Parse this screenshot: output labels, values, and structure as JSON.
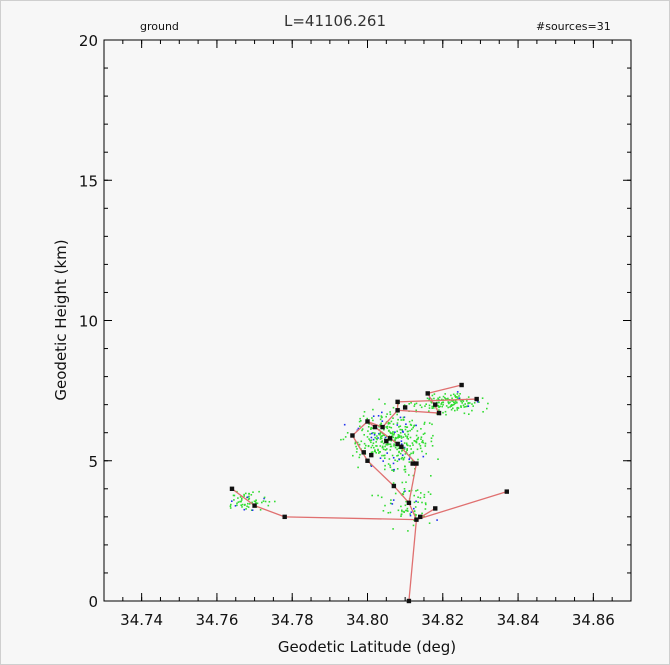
{
  "header": {
    "left": "ground",
    "center": "L=41106.261",
    "right": "#sources=31"
  },
  "chart_data": {
    "type": "scatter",
    "xlabel": "Geodetic Latitude (deg)",
    "ylabel": "Geodetic Height (km)",
    "xlim": [
      34.73,
      34.87
    ],
    "ylim": [
      0,
      20
    ],
    "x_ticks": [
      "34.74",
      "34.76",
      "34.78",
      "34.80",
      "34.82",
      "34.84",
      "34.86"
    ],
    "x_tick_values": [
      34.74,
      34.76,
      34.78,
      34.8,
      34.82,
      34.84,
      34.86
    ],
    "y_ticks": [
      "0",
      "5",
      "10",
      "15",
      "20"
    ],
    "y_tick_values": [
      0,
      5,
      10,
      15,
      20
    ],
    "grid": false,
    "colors": {
      "green": "#33dd33",
      "blue": "#2233ee",
      "line": "#e07070",
      "node": "#111111"
    },
    "sources": [
      [
        34.811,
        0.0
      ],
      [
        34.813,
        2.9
      ],
      [
        34.818,
        3.3
      ],
      [
        34.837,
        3.9
      ],
      [
        34.811,
        3.5
      ],
      [
        34.807,
        4.1
      ],
      [
        34.813,
        4.9
      ],
      [
        34.808,
        5.6
      ],
      [
        34.809,
        5.5
      ],
      [
        34.806,
        5.8
      ],
      [
        34.8,
        5.0
      ],
      [
        34.799,
        5.3
      ],
      [
        34.796,
        5.9
      ],
      [
        34.8,
        6.4
      ],
      [
        34.802,
        6.2
      ],
      [
        34.804,
        6.2
      ],
      [
        34.808,
        7.1
      ],
      [
        34.808,
        6.8
      ],
      [
        34.816,
        7.4
      ],
      [
        34.825,
        7.7
      ],
      [
        34.819,
        6.7
      ],
      [
        34.829,
        7.2
      ],
      [
        34.778,
        3.0
      ],
      [
        34.77,
        3.4
      ],
      [
        34.764,
        4.0
      ],
      [
        34.81,
        6.9
      ],
      [
        34.818,
        7.0
      ],
      [
        34.812,
        4.9
      ],
      [
        34.805,
        5.7
      ],
      [
        34.814,
        3.0
      ],
      [
        34.801,
        5.2
      ]
    ],
    "segments": [
      [
        [
          34.811,
          0.0
        ],
        [
          34.813,
          2.9
        ]
      ],
      [
        [
          34.813,
          2.9
        ],
        [
          34.818,
          3.3
        ]
      ],
      [
        [
          34.813,
          2.9
        ],
        [
          34.837,
          3.9
        ]
      ],
      [
        [
          34.813,
          2.9
        ],
        [
          34.778,
          3.0
        ]
      ],
      [
        [
          34.778,
          3.0
        ],
        [
          34.77,
          3.4
        ]
      ],
      [
        [
          34.77,
          3.4
        ],
        [
          34.764,
          4.0
        ]
      ],
      [
        [
          34.813,
          2.9
        ],
        [
          34.811,
          3.5
        ]
      ],
      [
        [
          34.811,
          3.5
        ],
        [
          34.807,
          4.1
        ]
      ],
      [
        [
          34.807,
          4.1
        ],
        [
          34.8,
          5.0
        ]
      ],
      [
        [
          34.811,
          3.5
        ],
        [
          34.813,
          4.9
        ]
      ],
      [
        [
          34.813,
          4.9
        ],
        [
          34.808,
          5.6
        ]
      ],
      [
        [
          34.808,
          5.6
        ],
        [
          34.8,
          6.4
        ]
      ],
      [
        [
          34.8,
          6.4
        ],
        [
          34.796,
          5.9
        ]
      ],
      [
        [
          34.796,
          5.9
        ],
        [
          34.8,
          5.0
        ]
      ],
      [
        [
          34.808,
          5.6
        ],
        [
          34.809,
          5.5
        ]
      ],
      [
        [
          34.8,
          6.4
        ],
        [
          34.804,
          6.2
        ]
      ],
      [
        [
          34.804,
          6.2
        ],
        [
          34.808,
          6.8
        ]
      ],
      [
        [
          34.808,
          6.8
        ],
        [
          34.819,
          6.7
        ]
      ],
      [
        [
          34.808,
          6.8
        ],
        [
          34.808,
          7.1
        ]
      ],
      [
        [
          34.808,
          7.1
        ],
        [
          34.829,
          7.2
        ]
      ],
      [
        [
          34.816,
          7.4
        ],
        [
          34.825,
          7.7
        ]
      ],
      [
        [
          34.816,
          7.4
        ],
        [
          34.819,
          6.7
        ]
      ]
    ]
  }
}
